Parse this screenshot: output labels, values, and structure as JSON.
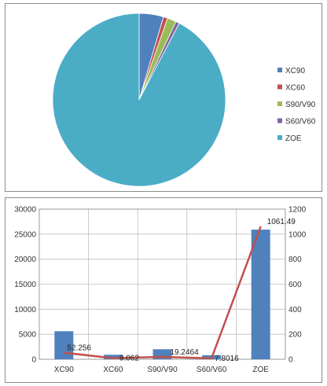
{
  "chart_data": [
    {
      "type": "pie",
      "legend_position": "right",
      "categories": [
        "XC90",
        "XC60",
        "S90/V90",
        "S60/V60",
        "ZOE"
      ],
      "values": [
        52.256,
        9.062,
        19.2464,
        7.8016,
        1061.49
      ],
      "colors": [
        "#4f81bd",
        "#c0504d",
        "#9bbb59",
        "#8064a2",
        "#4bacc6"
      ]
    },
    {
      "type": "bar",
      "categories": [
        "XC90",
        "XC60",
        "S90/V90",
        "S60/V60",
        "ZOE"
      ],
      "series": [
        {
          "chart": "bar",
          "axis": "left",
          "color": "#4f81bd",
          "values": [
            5600,
            900,
            2000,
            800,
            25900
          ]
        },
        {
          "chart": "line",
          "axis": "right",
          "color": "#c0504d",
          "values": [
            52.256,
            9.062,
            19.2464,
            7.8016,
            1061.49
          ],
          "data_labels": [
            "52.256",
            "9.062",
            "19.2464",
            "7.8016",
            "1061.49"
          ]
        }
      ],
      "y_left": {
        "min": 0,
        "max": 30000,
        "step": 5000,
        "ticks": [
          "0",
          "5000",
          "10000",
          "15000",
          "20000",
          "25000",
          "30000"
        ]
      },
      "y_right": {
        "min": 0,
        "max": 1200,
        "step": 200,
        "ticks": [
          "0",
          "200",
          "400",
          "600",
          "800",
          "1000",
          "1200"
        ]
      },
      "grid": true,
      "legend": false
    }
  ]
}
